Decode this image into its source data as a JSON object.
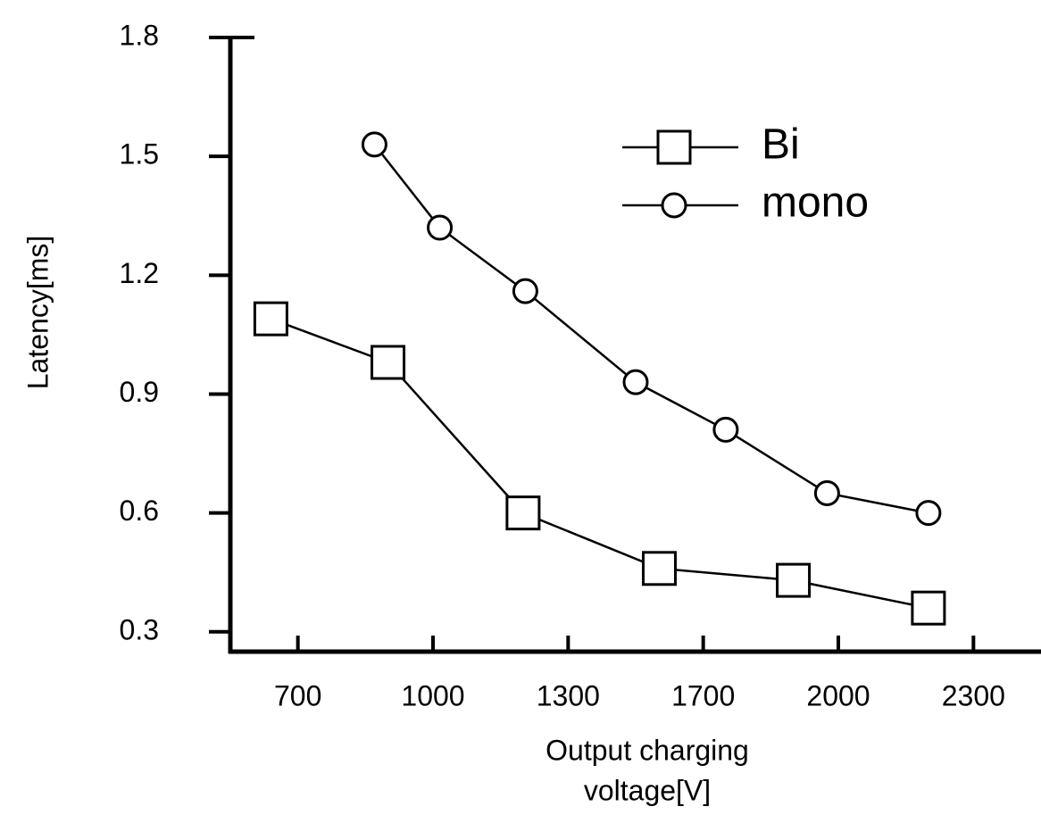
{
  "chart_data": {
    "type": "line",
    "y_label": "Latency[ms]",
    "x_label": [
      "Output charging",
      "voltage[V]"
    ],
    "xlim": [
      550,
      2450
    ],
    "xticks": [
      700,
      1000,
      1300,
      1700,
      2000,
      2300
    ],
    "ylim": [
      0.25,
      1.8
    ],
    "yticks": [
      0.3,
      0.6,
      0.9,
      1.2,
      1.5,
      1.8
    ],
    "legend": "upper right",
    "series": [
      {
        "name": "Bi",
        "color": "#000000",
        "marker": "square",
        "x": [
          640,
          900,
          1200,
          1570,
          1900,
          2200
        ],
        "values": [
          1.09,
          0.98,
          0.6,
          0.46,
          0.43,
          0.36
        ]
      },
      {
        "name": "mono",
        "color": "#000000",
        "marker": "circle",
        "x": [
          870,
          1015,
          1205,
          1500,
          1750,
          1975,
          2200
        ],
        "values": [
          1.53,
          1.32,
          1.16,
          0.93,
          0.81,
          0.65,
          0.6
        ]
      }
    ]
  }
}
